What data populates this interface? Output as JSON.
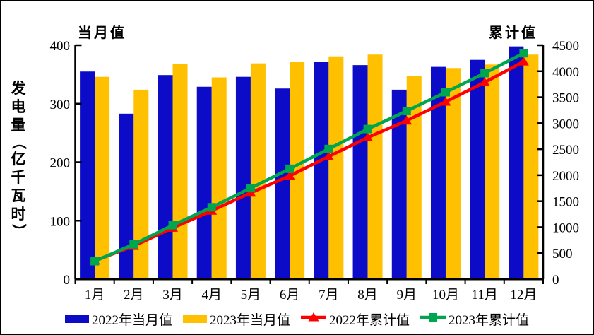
{
  "titles": {
    "left": "当月值",
    "right": "累计值"
  },
  "y_axis_label": "发电量（亿千瓦时）",
  "chart_data": {
    "type": "combo-bar-line",
    "title": "",
    "ylabel_left": "发电量（亿千瓦时）",
    "axis_title_left": "当月值",
    "axis_title_right": "累计值",
    "categories": [
      "1月",
      "2月",
      "3月",
      "4月",
      "5月",
      "6月",
      "7月",
      "8月",
      "9月",
      "10月",
      "11月",
      "12月"
    ],
    "left_axis": {
      "min": 0,
      "max": 400,
      "ticks": [
        0,
        100,
        200,
        300,
        400
      ]
    },
    "right_axis": {
      "min": 0,
      "max": 4500,
      "ticks": [
        0,
        500,
        1000,
        1500,
        2000,
        2500,
        3000,
        3500,
        4000,
        4500
      ]
    },
    "grid": false,
    "legend_position": "bottom",
    "series": [
      {
        "name": "2022年当月值",
        "type": "bar",
        "axis": "left",
        "color": "#0B0BC8",
        "values": [
          355,
          283,
          349,
          329,
          346,
          326,
          371,
          366,
          324,
          363,
          375,
          398
        ]
      },
      {
        "name": "2023年当月值",
        "type": "bar",
        "axis": "left",
        "color": "#FFC000",
        "values": [
          346,
          324,
          368,
          345,
          369,
          371,
          381,
          384,
          347,
          361,
          367,
          384
        ]
      },
      {
        "name": "2022年累计值",
        "type": "line",
        "axis": "right",
        "color": "#FE0000",
        "marker": "triangle",
        "values": [
          355,
          638,
          987,
          1316,
          1662,
          1988,
          2359,
          2725,
          3049,
          3412,
          3787,
          4185
        ]
      },
      {
        "name": "2023年累计值",
        "type": "line",
        "axis": "right",
        "color": "#00A550",
        "marker": "square",
        "values": [
          346,
          670,
          1038,
          1383,
          1752,
          2123,
          2504,
          2888,
          3235,
          3596,
          3963,
          4347
        ]
      }
    ]
  }
}
